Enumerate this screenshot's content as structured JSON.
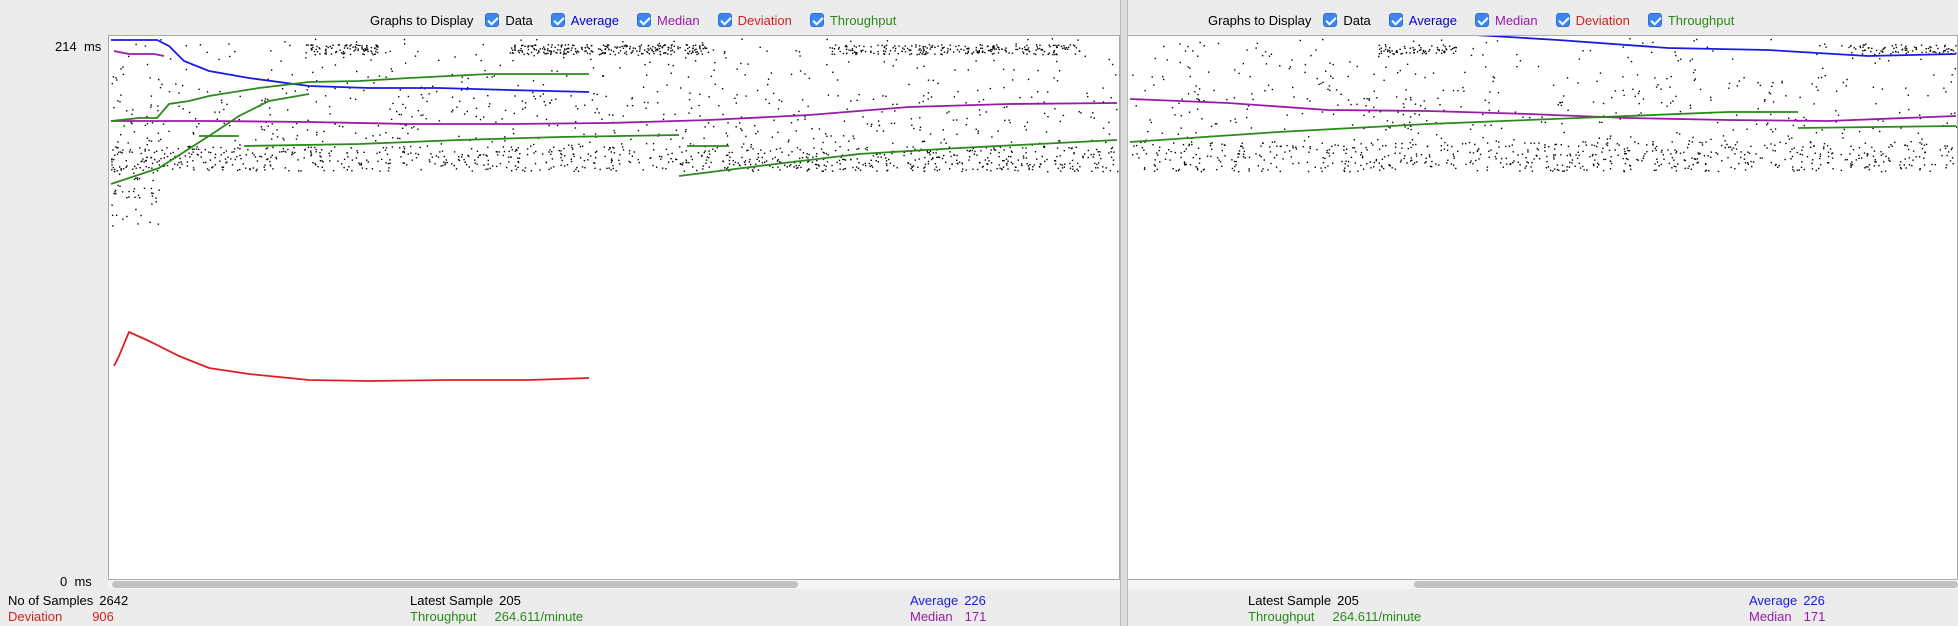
{
  "toolbar": {
    "label": "Graphs to Display",
    "options": [
      {
        "label": "Data",
        "color": "#000000",
        "checked": true
      },
      {
        "label": "Average",
        "color": "#0000cc",
        "checked": true
      },
      {
        "label": "Median",
        "color": "#9a1aa8",
        "checked": true
      },
      {
        "label": "Deviation",
        "color": "#d42020",
        "checked": true
      },
      {
        "label": "Throughput",
        "color": "#2a8a1a",
        "checked": true
      }
    ]
  },
  "axis": {
    "y_max": "214",
    "y_min": "0",
    "unit": "ms"
  },
  "colors": {
    "data": "#000000",
    "average": "#1a1ae6",
    "median": "#9a1aa8",
    "deviation": "#e02020",
    "throughput": "#2a8a1a"
  },
  "stats_left": {
    "samples_label": "No of Samples",
    "samples_value": "2642",
    "deviation_label": "Deviation",
    "deviation_value": "906",
    "latest_label": "Latest Sample",
    "latest_value": "205",
    "throughput_label": "Throughput",
    "throughput_value": "264.611/minute",
    "average_label": "Average",
    "average_value": "226",
    "median_label": "Median",
    "median_value": "171"
  },
  "stats_right": {
    "latest_label": "Latest Sample",
    "latest_value": "205",
    "throughput_label": "Throughput",
    "throughput_value": "264.611/minute",
    "average_label": "Average",
    "average_value": "226",
    "median_label": "Median",
    "median_value": "171"
  }
}
